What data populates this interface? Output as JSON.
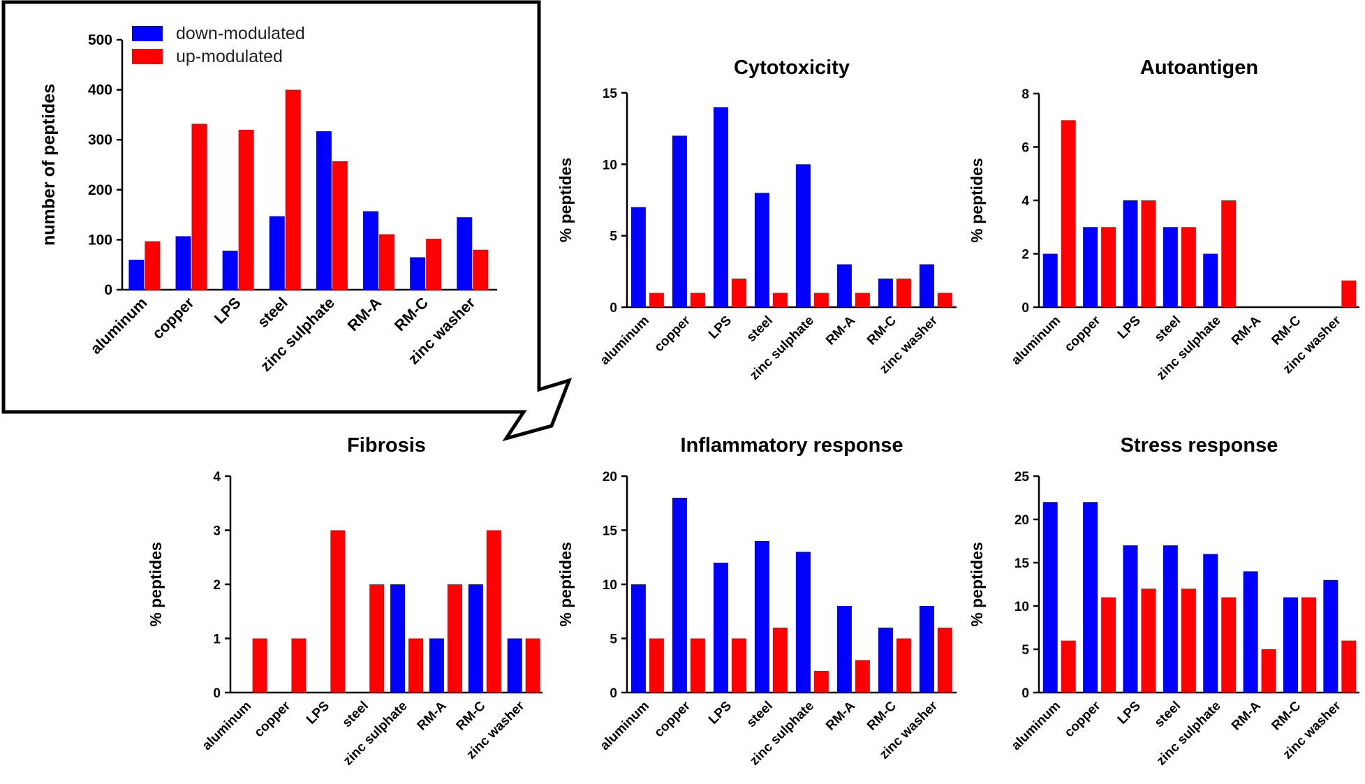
{
  "figure": {
    "categories": [
      "aluminum",
      "copper",
      "LPS",
      "steel",
      "zinc sulphate",
      "RM-A",
      "RM-C",
      "zinc washer"
    ],
    "legend": [
      {
        "key": "down",
        "label": "down-modulated",
        "color": "#0000ff"
      },
      {
        "key": "up",
        "label": "up-modulated",
        "color": "#ff0000"
      }
    ]
  },
  "chart_data": [
    {
      "id": "total",
      "type": "bar",
      "title": "",
      "ylabel": "number of peptides",
      "xlabel": "",
      "ylim": [
        0,
        500
      ],
      "yticks": [
        0,
        100,
        200,
        300,
        400,
        500
      ],
      "legend_position": "top-left",
      "categories": [
        "aluminum",
        "copper",
        "LPS",
        "steel",
        "zinc sulphate",
        "RM-A",
        "RM-C",
        "zinc washer"
      ],
      "series": [
        {
          "name": "down-modulated",
          "color": "#0000ff",
          "values": [
            60,
            107,
            78,
            147,
            317,
            157,
            65,
            145
          ]
        },
        {
          "name": "up-modulated",
          "color": "#ff0000",
          "values": [
            97,
            332,
            320,
            400,
            257,
            111,
            102,
            80
          ]
        }
      ]
    },
    {
      "id": "cytotoxicity",
      "type": "bar",
      "title": "Cytotoxicity",
      "ylabel": "% peptides",
      "xlabel": "",
      "ylim": [
        0,
        15
      ],
      "yticks": [
        0,
        5,
        10,
        15
      ],
      "categories": [
        "aluminum",
        "copper",
        "LPS",
        "steel",
        "zinc sulphate",
        "RM-A",
        "RM-C",
        "zinc washer"
      ],
      "series": [
        {
          "name": "down-modulated",
          "color": "#0000ff",
          "values": [
            7,
            12,
            14,
            8,
            10,
            3,
            2,
            3
          ]
        },
        {
          "name": "up-modulated",
          "color": "#ff0000",
          "values": [
            1,
            1,
            2,
            1,
            1,
            1,
            2,
            1
          ]
        }
      ]
    },
    {
      "id": "autoantigen",
      "type": "bar",
      "title": "Autoantigen",
      "ylabel": "% peptides",
      "xlabel": "",
      "ylim": [
        0,
        8
      ],
      "yticks": [
        0,
        2,
        4,
        6,
        8
      ],
      "categories": [
        "aluminum",
        "copper",
        "LPS",
        "steel",
        "zinc sulphate",
        "RM-A",
        "RM-C",
        "zinc washer"
      ],
      "series": [
        {
          "name": "down-modulated",
          "color": "#0000ff",
          "values": [
            2,
            3,
            4,
            3,
            2,
            0,
            0,
            0
          ]
        },
        {
          "name": "up-modulated",
          "color": "#ff0000",
          "values": [
            7,
            3,
            4,
            3,
            4,
            0,
            0,
            1
          ]
        }
      ]
    },
    {
      "id": "fibrosis",
      "type": "bar",
      "title": "Fibrosis",
      "ylabel": "% peptides",
      "xlabel": "",
      "ylim": [
        0,
        4
      ],
      "yticks": [
        0,
        1,
        2,
        3,
        4
      ],
      "categories": [
        "aluminum",
        "copper",
        "LPS",
        "steel",
        "zinc sulphate",
        "RM-A",
        "RM-C",
        "zinc washer"
      ],
      "series": [
        {
          "name": "down-modulated",
          "color": "#0000ff",
          "values": [
            0,
            0,
            0,
            0,
            2,
            1,
            2,
            1
          ]
        },
        {
          "name": "up-modulated",
          "color": "#ff0000",
          "values": [
            1,
            1,
            3,
            2,
            1,
            2,
            3,
            1
          ]
        }
      ]
    },
    {
      "id": "inflammatory",
      "type": "bar",
      "title": "Inflammatory response",
      "ylabel": "% peptides",
      "xlabel": "",
      "ylim": [
        0,
        20
      ],
      "yticks": [
        0,
        5,
        10,
        15,
        20
      ],
      "categories": [
        "aluminum",
        "copper",
        "LPS",
        "steel",
        "zinc sulphate",
        "RM-A",
        "RM-C",
        "zinc washer"
      ],
      "series": [
        {
          "name": "down-modulated",
          "color": "#0000ff",
          "values": [
            10,
            18,
            12,
            14,
            13,
            8,
            6,
            8
          ]
        },
        {
          "name": "up-modulated",
          "color": "#ff0000",
          "values": [
            5,
            5,
            5,
            6,
            2,
            3,
            5,
            6
          ]
        }
      ]
    },
    {
      "id": "stress",
      "type": "bar",
      "title": "Stress response",
      "ylabel": "% peptides",
      "xlabel": "",
      "ylim": [
        0,
        25
      ],
      "yticks": [
        0,
        5,
        10,
        15,
        20,
        25
      ],
      "categories": [
        "aluminum",
        "copper",
        "LPS",
        "steel",
        "zinc sulphate",
        "RM-A",
        "RM-C",
        "zinc washer"
      ],
      "series": [
        {
          "name": "down-modulated",
          "color": "#0000ff",
          "values": [
            22,
            22,
            17,
            17,
            16,
            14,
            11,
            13
          ]
        },
        {
          "name": "up-modulated",
          "color": "#ff0000",
          "values": [
            6,
            11,
            12,
            12,
            11,
            5,
            11,
            6
          ]
        }
      ]
    }
  ]
}
